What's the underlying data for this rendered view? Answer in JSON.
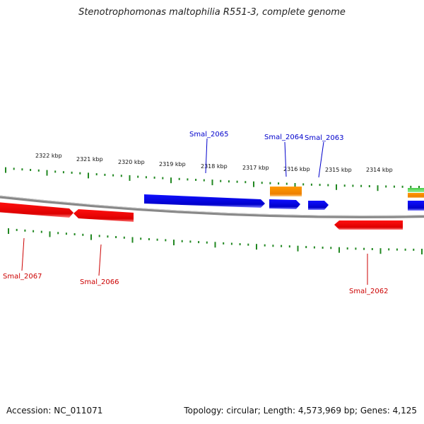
{
  "title": "Stenotrophomonas maltophilia R551-3, complete genome",
  "footer": {
    "accession": "Accession: NC_011071",
    "topology": "Topology: circular; Length: 4,573,969 bp; Genes: 4,125"
  },
  "colors": {
    "forward": "#0000ee",
    "reverse": "#ee0000",
    "orange": "#ff8800",
    "green": "#33bb33",
    "ticks": "#228822",
    "backbone": "#888888"
  },
  "scale_ticks": [
    {
      "label": "2322 kbp",
      "pos_kbp": 2322
    },
    {
      "label": "2321 kbp",
      "pos_kbp": 2321
    },
    {
      "label": "2320 kbp",
      "pos_kbp": 2320
    },
    {
      "label": "2319 kbp",
      "pos_kbp": 2319
    },
    {
      "label": "2318 kbp",
      "pos_kbp": 2318
    },
    {
      "label": "2317 kbp",
      "pos_kbp": 2317
    },
    {
      "label": "2316 kbp",
      "pos_kbp": 2316
    },
    {
      "label": "2315 kbp",
      "pos_kbp": 2315
    },
    {
      "label": "2314 kbp",
      "pos_kbp": 2314
    }
  ],
  "genes": [
    {
      "name": "Smal_2065",
      "strand": "+",
      "color": "forward"
    },
    {
      "name": "Smal_2064",
      "strand": "+",
      "color": "forward"
    },
    {
      "name": "Smal_2063",
      "strand": "+",
      "color": "forward"
    },
    {
      "name": "Smal_2067",
      "strand": "-",
      "color": "reverse"
    },
    {
      "name": "Smal_2066",
      "strand": "-",
      "color": "reverse"
    },
    {
      "name": "Smal_2062",
      "strand": "-",
      "color": "reverse"
    }
  ]
}
